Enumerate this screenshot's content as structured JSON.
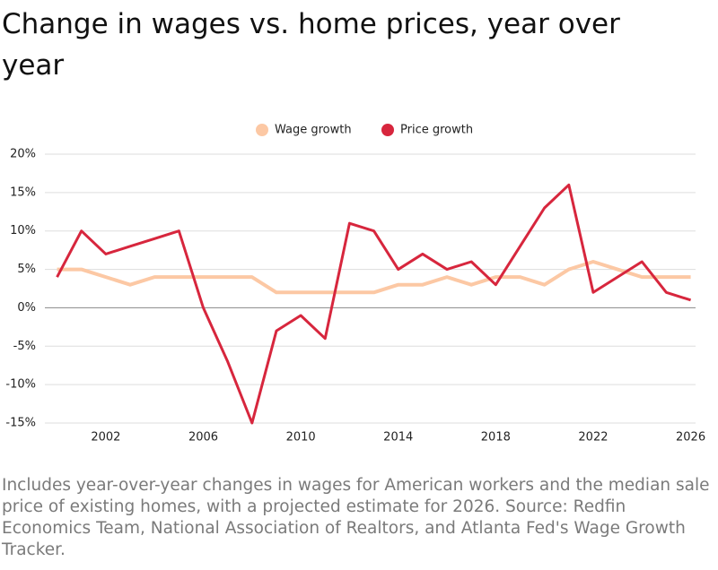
{
  "chart_data": {
    "type": "line",
    "title": "Change in wages vs. home prices, year over year",
    "note": "Includes year-over-year changes in wages for American workers and the median sale price of existing homes, with a projected estimate for 2026. Source: Redfin Economics Team, National Association of Realtors, and Atlanta Fed's Wage Growth Tracker.",
    "x": [
      2000,
      2001,
      2002,
      2003,
      2004,
      2005,
      2006,
      2007,
      2008,
      2009,
      2010,
      2011,
      2012,
      2013,
      2014,
      2015,
      2016,
      2017,
      2018,
      2019,
      2020,
      2021,
      2022,
      2023,
      2024,
      2025,
      2026
    ],
    "series": [
      {
        "name": "Wage growth",
        "color": "#fcc8a4",
        "values": [
          5,
          5,
          4,
          3,
          4,
          4,
          4,
          4,
          4,
          2,
          2,
          2,
          2,
          2,
          3,
          3,
          4,
          3,
          4,
          4,
          3,
          5,
          6,
          5,
          4,
          4,
          4
        ]
      },
      {
        "name": "Price growth",
        "color": "#d7263d",
        "values": [
          4,
          10,
          7,
          8,
          9,
          10,
          0,
          -7,
          -15,
          -3,
          -1,
          -4,
          11,
          10,
          5,
          7,
          5,
          6,
          3,
          8,
          13,
          16,
          2,
          4,
          6,
          2,
          1
        ]
      }
    ],
    "xlim": [
      1999.5,
      2026.2
    ],
    "xticks": [
      2002,
      2006,
      2010,
      2014,
      2018,
      2022,
      2026
    ],
    "ylim": [
      -15,
      20
    ],
    "yticks": [
      {
        "value": -15,
        "label": "-15%"
      },
      {
        "value": -10,
        "label": "-10%"
      },
      {
        "value": -5,
        "label": "-5%"
      },
      {
        "value": 0,
        "label": "0%"
      },
      {
        "value": 5,
        "label": "5%"
      },
      {
        "value": 10,
        "label": "10%"
      },
      {
        "value": 15,
        "label": "15%"
      },
      {
        "value": 20,
        "label": "20%"
      }
    ],
    "grid": true
  }
}
